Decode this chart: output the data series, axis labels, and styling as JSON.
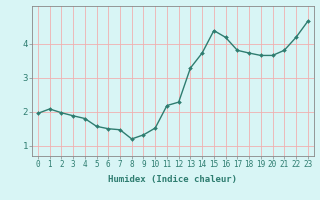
{
  "x": [
    0,
    1,
    2,
    3,
    4,
    5,
    6,
    7,
    8,
    9,
    10,
    11,
    12,
    13,
    14,
    15,
    16,
    17,
    18,
    19,
    20,
    21,
    22,
    23
  ],
  "y": [
    1.95,
    2.08,
    1.97,
    1.88,
    1.8,
    1.57,
    1.5,
    1.47,
    1.2,
    1.32,
    1.52,
    2.18,
    2.28,
    3.28,
    3.72,
    4.38,
    4.18,
    3.8,
    3.72,
    3.65,
    3.65,
    3.8,
    4.18,
    4.65
  ],
  "line_color": "#2e7d70",
  "marker": "D",
  "marker_size": 2.0,
  "bg_color": "#d8f5f5",
  "grid_color": "#f0b0b0",
  "axis_color": "#2e7d70",
  "xlabel": "Humidex (Indice chaleur)",
  "xlabel_fontsize": 6.5,
  "ylabel_ticks": [
    1,
    2,
    3,
    4
  ],
  "xlim": [
    -0.5,
    23.5
  ],
  "ylim": [
    0.7,
    5.1
  ],
  "ytick_fontsize": 6.5,
  "xtick_fontsize": 5.5
}
